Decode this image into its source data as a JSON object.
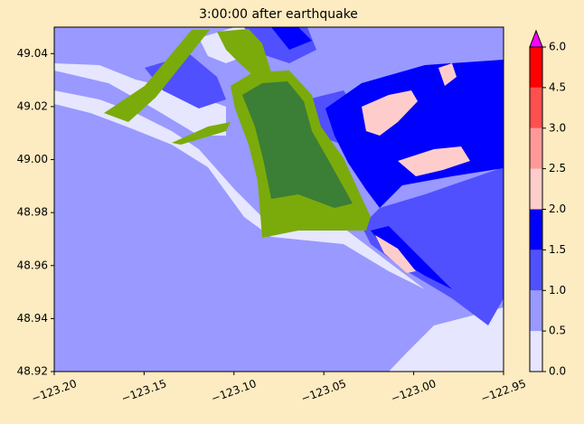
{
  "chart_data": {
    "type": "contourf",
    "title": "3:00:00 after earthquake",
    "xlim": [
      -123.2,
      -122.95
    ],
    "xticks": [
      {
        "value": -123.2,
        "label": "−123.20"
      },
      {
        "value": -123.15,
        "label": "−123.15"
      },
      {
        "value": -123.1,
        "label": "−123.10"
      },
      {
        "value": -123.05,
        "label": "−123.05"
      },
      {
        "value": -123.0,
        "label": "−123.00"
      },
      {
        "value": -122.95,
        "label": "−122.95"
      }
    ],
    "ylim": [
      48.92,
      49.05
    ],
    "yticks": [
      48.92,
      48.94,
      48.96,
      48.98,
      {
        "value": 49.0,
        "label": "49.00"
      },
      49.02,
      49.04
    ],
    "land_colors": [
      "#7aab0a",
      "#3b7e35"
    ],
    "colorbar": {
      "ticks": [
        {
          "value": 0,
          "label": "0.0"
        },
        0.5,
        {
          "value": 1,
          "label": "1.0"
        },
        1.5,
        {
          "value": 2,
          "label": "2.0"
        },
        2.5,
        {
          "value": 3,
          "label": "3.0"
        },
        4.5,
        {
          "value": 6,
          "label": "6.0"
        }
      ],
      "colors": [
        "#e6e6ff",
        "#9999ff",
        "#5050ff",
        "#0000ff",
        "#ffcccc",
        "#ff9999",
        "#ff5050",
        "#ff0000"
      ],
      "extend_color": "#ff00ff"
    }
  }
}
